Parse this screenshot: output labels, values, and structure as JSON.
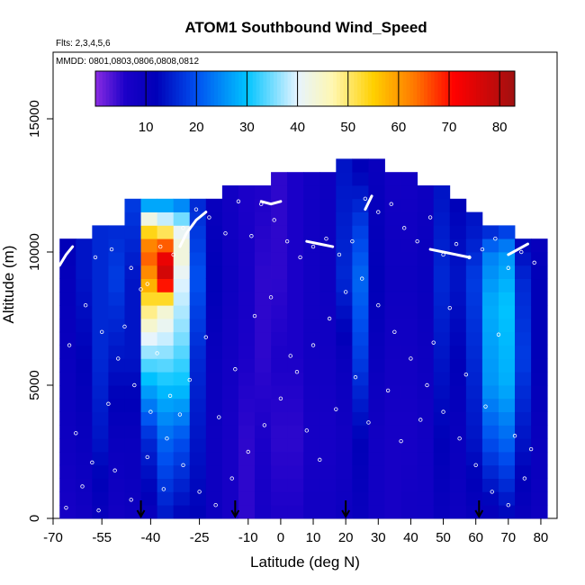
{
  "chart_data": {
    "type": "heatmap",
    "title": "ATOM1 Southbound Wind_Speed",
    "subtitle_flights": "Flts: 2,3,4,5,6",
    "subtitle_dates": "MMDD: 0801,0803,0806,0808,0812",
    "xlabel": "Latitude (deg N)",
    "ylabel": "Altitude (m)",
    "xlim": [
      -70,
      85
    ],
    "ylim": [
      0,
      17500
    ],
    "x_ticks": [
      {
        "v": -70,
        "label": "-70"
      },
      {
        "v": -55,
        "label": "-55"
      },
      {
        "v": -40,
        "label": "-40"
      },
      {
        "v": -25,
        "label": "-25"
      },
      {
        "v": -10,
        "label": "-10"
      },
      {
        "v": 0,
        "label": "0"
      },
      {
        "v": 10,
        "label": "10"
      },
      {
        "v": 20,
        "label": "20"
      },
      {
        "v": 30,
        "label": "30"
      },
      {
        "v": 40,
        "label": "40"
      },
      {
        "v": 50,
        "label": "50"
      },
      {
        "v": 60,
        "label": "60"
      },
      {
        "v": 70,
        "label": "70"
      },
      {
        "v": 80,
        "label": "80"
      }
    ],
    "y_ticks": [
      {
        "v": 0,
        "label": "0"
      },
      {
        "v": 5000,
        "label": "5000"
      },
      {
        "v": 10000,
        "label": "10000"
      },
      {
        "v": 15000,
        "label": "15000"
      }
    ],
    "colorbar": {
      "range": [
        0,
        83
      ],
      "ticks": [
        {
          "v": 10,
          "label": "10"
        },
        {
          "v": 20,
          "label": "20"
        },
        {
          "v": 30,
          "label": "30"
        },
        {
          "v": 40,
          "label": "40"
        },
        {
          "v": 50,
          "label": "50"
        },
        {
          "v": 60,
          "label": "60"
        },
        {
          "v": 70,
          "label": "70"
        },
        {
          "v": 80,
          "label": "80"
        }
      ],
      "color_stops": [
        {
          "v": 0,
          "color": "#8a2be2"
        },
        {
          "v": 6,
          "color": "#1a00c8"
        },
        {
          "v": 12,
          "color": "#0000b8"
        },
        {
          "v": 20,
          "color": "#0050f0"
        },
        {
          "v": 30,
          "color": "#00c4ff"
        },
        {
          "v": 40,
          "color": "#e6f4ff"
        },
        {
          "v": 47,
          "color": "#fff7b0"
        },
        {
          "v": 55,
          "color": "#ffd000"
        },
        {
          "v": 63,
          "color": "#ff7a00"
        },
        {
          "v": 71,
          "color": "#ff0000"
        },
        {
          "v": 83,
          "color": "#a01010"
        }
      ]
    },
    "grid": false,
    "bins": {
      "lat_start": -68,
      "lat_step": 5,
      "alt_step": 500
    },
    "altitude_top_by_lat_bin": [
      10500,
      10500,
      11000,
      11000,
      12000,
      12000,
      12000,
      12000,
      12000,
      12000,
      12500,
      12500,
      12500,
      13000,
      13000,
      13000,
      13000,
      13500,
      13500,
      13500,
      13000,
      13000,
      12500,
      12500,
      12000,
      11500,
      11000,
      11000,
      10500,
      10500
    ],
    "columns": [
      [
        [
          0,
          7
        ],
        [
          3,
          9
        ],
        [
          6,
          10
        ],
        [
          9,
          11
        ],
        [
          10.5,
          12
        ]
      ],
      [
        [
          0,
          8
        ],
        [
          3,
          10
        ],
        [
          6,
          12
        ],
        [
          9,
          14
        ],
        [
          10.5,
          14
        ]
      ],
      [
        [
          0,
          10
        ],
        [
          3,
          14
        ],
        [
          6,
          16
        ],
        [
          9,
          16
        ],
        [
          11,
          16
        ]
      ],
      [
        [
          0,
          8
        ],
        [
          3,
          10
        ],
        [
          6,
          14
        ],
        [
          9,
          18
        ],
        [
          11,
          16
        ]
      ],
      [
        [
          0,
          9
        ],
        [
          3,
          10
        ],
        [
          6,
          14
        ],
        [
          9,
          14
        ],
        [
          12,
          18
        ]
      ],
      [
        [
          0,
          10
        ],
        [
          3,
          16
        ],
        [
          5,
          28
        ],
        [
          7,
          42
        ],
        [
          9,
          60
        ],
        [
          10,
          66
        ],
        [
          11,
          50
        ],
        [
          12,
          20
        ]
      ],
      [
        [
          0,
          14
        ],
        [
          3,
          22
        ],
        [
          5,
          30
        ],
        [
          7,
          40
        ],
        [
          8,
          45
        ],
        [
          9,
          78
        ],
        [
          10,
          72
        ],
        [
          11,
          44
        ],
        [
          12,
          22
        ]
      ],
      [
        [
          0,
          12
        ],
        [
          3,
          20
        ],
        [
          5,
          30
        ],
        [
          7,
          36
        ],
        [
          9,
          40
        ],
        [
          10,
          44
        ],
        [
          11,
          40
        ],
        [
          12,
          20
        ]
      ],
      [
        [
          0,
          12
        ],
        [
          3,
          14
        ],
        [
          6,
          16
        ],
        [
          9,
          20
        ],
        [
          12,
          16
        ]
      ],
      [
        [
          0,
          9
        ],
        [
          3,
          9
        ],
        [
          6,
          10
        ],
        [
          9,
          12
        ],
        [
          12,
          10
        ]
      ],
      [
        [
          0,
          7
        ],
        [
          3,
          7
        ],
        [
          6,
          8
        ],
        [
          9,
          9
        ],
        [
          12,
          8
        ]
      ],
      [
        [
          0,
          5
        ],
        [
          3,
          5
        ],
        [
          6,
          6
        ],
        [
          9,
          7
        ],
        [
          12,
          6
        ]
      ],
      [
        [
          0,
          7
        ],
        [
          3,
          6
        ],
        [
          6,
          5
        ],
        [
          9,
          5
        ],
        [
          13,
          6
        ]
      ],
      [
        [
          0,
          6
        ],
        [
          3,
          5
        ],
        [
          6,
          6
        ],
        [
          9,
          5
        ],
        [
          13,
          5
        ]
      ],
      [
        [
          0,
          6
        ],
        [
          3,
          5
        ],
        [
          6,
          6
        ],
        [
          9,
          6
        ],
        [
          13,
          6
        ]
      ],
      [
        [
          0,
          8
        ],
        [
          3,
          7
        ],
        [
          6,
          8
        ],
        [
          9,
          8
        ],
        [
          13,
          8
        ]
      ],
      [
        [
          0,
          8
        ],
        [
          3,
          7
        ],
        [
          6,
          8
        ],
        [
          9,
          9
        ],
        [
          13,
          9
        ]
      ],
      [
        [
          0,
          9
        ],
        [
          3,
          8
        ],
        [
          6,
          10
        ],
        [
          9,
          16
        ],
        [
          13,
          14
        ]
      ],
      [
        [
          0,
          10
        ],
        [
          3,
          12
        ],
        [
          6,
          18
        ],
        [
          9,
          22
        ],
        [
          11,
          18
        ],
        [
          13,
          12
        ]
      ],
      [
        [
          0,
          8
        ],
        [
          3,
          8
        ],
        [
          6,
          10
        ],
        [
          9,
          12
        ],
        [
          13,
          10
        ]
      ],
      [
        [
          0,
          7
        ],
        [
          3,
          7
        ],
        [
          6,
          8
        ],
        [
          9,
          9
        ],
        [
          13,
          8
        ]
      ],
      [
        [
          0,
          8
        ],
        [
          3,
          7
        ],
        [
          6,
          8
        ],
        [
          9,
          9
        ],
        [
          12,
          8
        ]
      ],
      [
        [
          0,
          8
        ],
        [
          3,
          8
        ],
        [
          6,
          9
        ],
        [
          9,
          10
        ],
        [
          12,
          9
        ]
      ],
      [
        [
          0,
          10
        ],
        [
          3,
          12
        ],
        [
          6,
          14
        ],
        [
          9,
          16
        ],
        [
          12,
          14
        ]
      ],
      [
        [
          0,
          9
        ],
        [
          3,
          10
        ],
        [
          6,
          12
        ],
        [
          9,
          14
        ],
        [
          12,
          12
        ]
      ],
      [
        [
          0,
          10
        ],
        [
          3,
          14
        ],
        [
          6,
          16
        ],
        [
          9,
          18
        ],
        [
          11,
          14
        ]
      ],
      [
        [
          0,
          10
        ],
        [
          3,
          20
        ],
        [
          5,
          26
        ],
        [
          8,
          28
        ],
        [
          10,
          24
        ],
        [
          11,
          14
        ]
      ],
      [
        [
          0,
          12
        ],
        [
          3,
          22
        ],
        [
          5,
          28
        ],
        [
          8,
          30
        ],
        [
          10,
          26
        ],
        [
          11,
          16
        ]
      ],
      [
        [
          0,
          10
        ],
        [
          3,
          14
        ],
        [
          6,
          18
        ],
        [
          9,
          16
        ],
        [
          10.5,
          12
        ]
      ],
      [
        [
          0,
          9
        ],
        [
          3,
          10
        ],
        [
          6,
          12
        ],
        [
          9,
          12
        ],
        [
          10.5,
          10
        ]
      ]
    ],
    "sample_points": [
      [
        -57,
        9800
      ],
      [
        -52,
        10100
      ],
      [
        -46,
        9400
      ],
      [
        -41,
        8800
      ],
      [
        -37,
        10200
      ],
      [
        -33,
        9900
      ],
      [
        -30,
        10900
      ],
      [
        -26,
        11600
      ],
      [
        -22,
        11300
      ],
      [
        -17,
        10700
      ],
      [
        -13,
        11900
      ],
      [
        -9,
        10600
      ],
      [
        -6,
        11800
      ],
      [
        -2,
        11200
      ],
      [
        2,
        10400
      ],
      [
        6,
        9800
      ],
      [
        10,
        10200
      ],
      [
        14,
        10500
      ],
      [
        18,
        9900
      ],
      [
        22,
        10400
      ],
      [
        26,
        12000
      ],
      [
        30,
        11500
      ],
      [
        34,
        11800
      ],
      [
        38,
        10900
      ],
      [
        42,
        10400
      ],
      [
        46,
        11300
      ],
      [
        50,
        9900
      ],
      [
        54,
        10300
      ],
      [
        58,
        9800
      ],
      [
        62,
        10100
      ],
      [
        66,
        10500
      ],
      [
        70,
        9400
      ],
      [
        74,
        10000
      ],
      [
        78,
        9600
      ],
      [
        -60,
        8000
      ],
      [
        -55,
        7000
      ],
      [
        -50,
        6000
      ],
      [
        -45,
        5000
      ],
      [
        -40,
        4000
      ],
      [
        -35,
        3000
      ],
      [
        -30,
        2000
      ],
      [
        -25,
        1000
      ],
      [
        -20,
        500
      ],
      [
        -15,
        1500
      ],
      [
        -10,
        2500
      ],
      [
        -5,
        3500
      ],
      [
        0,
        4500
      ],
      [
        5,
        5500
      ],
      [
        10,
        6500
      ],
      [
        15,
        7500
      ],
      [
        20,
        8500
      ],
      [
        25,
        9000
      ],
      [
        30,
        8000
      ],
      [
        35,
        7000
      ],
      [
        40,
        6000
      ],
      [
        45,
        5000
      ],
      [
        50,
        4000
      ],
      [
        55,
        3000
      ],
      [
        60,
        2000
      ],
      [
        65,
        1000
      ],
      [
        70,
        500
      ],
      [
        75,
        1500
      ],
      [
        -65,
        6500
      ],
      [
        -63,
        3200
      ],
      [
        -58,
        2100
      ],
      [
        -53,
        4300
      ],
      [
        -48,
        7200
      ],
      [
        -43,
        8600
      ],
      [
        -38,
        6200
      ],
      [
        -34,
        4600
      ],
      [
        -28,
        5200
      ],
      [
        -23,
        6800
      ],
      [
        -19,
        3800
      ],
      [
        -14,
        5600
      ],
      [
        -8,
        7600
      ],
      [
        -3,
        8300
      ],
      [
        3,
        6100
      ],
      [
        8,
        3300
      ],
      [
        12,
        2200
      ],
      [
        17,
        4100
      ],
      [
        23,
        5300
      ],
      [
        27,
        3600
      ],
      [
        33,
        4800
      ],
      [
        37,
        2900
      ],
      [
        43,
        3700
      ],
      [
        47,
        6600
      ],
      [
        52,
        7900
      ],
      [
        57,
        5400
      ],
      [
        63,
        4200
      ],
      [
        67,
        6900
      ],
      [
        72,
        3100
      ],
      [
        77,
        2600
      ],
      [
        -66,
        400
      ],
      [
        -61,
        1200
      ],
      [
        -56,
        300
      ],
      [
        -51,
        1800
      ],
      [
        -46,
        700
      ],
      [
        -41,
        2300
      ],
      [
        -36,
        1100
      ],
      [
        -31,
        3900
      ]
    ],
    "flight_tracks": [
      [
        [
          -68,
          9500
        ],
        [
          -66,
          9900
        ],
        [
          -64,
          10200
        ]
      ],
      [
        [
          -31,
          10200
        ],
        [
          -29,
          10700
        ],
        [
          -26,
          11200
        ],
        [
          -23,
          11500
        ]
      ],
      [
        [
          -6,
          11900
        ],
        [
          -3,
          11800
        ],
        [
          0,
          11900
        ]
      ],
      [
        [
          8,
          10400
        ],
        [
          12,
          10300
        ],
        [
          16,
          10200
        ]
      ],
      [
        [
          26,
          11600
        ],
        [
          28,
          12100
        ]
      ],
      [
        [
          46,
          10100
        ],
        [
          50,
          10000
        ],
        [
          54,
          9900
        ],
        [
          58,
          9800
        ]
      ],
      [
        [
          70,
          9900
        ],
        [
          73,
          10100
        ],
        [
          76,
          10300
        ]
      ]
    ],
    "arrows_latitude": [
      -43,
      -14,
      20,
      61
    ]
  }
}
